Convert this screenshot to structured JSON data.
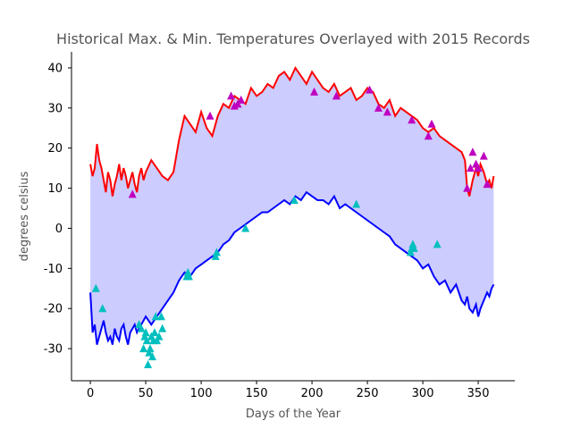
{
  "chart_data": {
    "type": "line",
    "title": "Historical Max. & Min. Temperatures Overlayed with 2015 Records",
    "xlabel": "Days of the Year",
    "ylabel": "degrees celsius",
    "xlim": [
      -17,
      383
    ],
    "ylim": [
      -38,
      44
    ],
    "xticks": [
      0,
      50,
      100,
      150,
      200,
      250,
      300,
      350
    ],
    "yticks": [
      -30,
      -20,
      -10,
      0,
      10,
      20,
      30,
      40
    ],
    "grid": false,
    "colors": {
      "max": "#ff0000",
      "min": "#0000ff",
      "fill": "#ccccff",
      "record_high": "#bf00bf",
      "record_low": "#00bfbf"
    },
    "series": [
      {
        "name": "",
        "kind": "max",
        "x": [
          0,
          2,
          4,
          6,
          8,
          10,
          12,
          14,
          16,
          18,
          20,
          22,
          24,
          26,
          28,
          30,
          32,
          34,
          36,
          38,
          40,
          42,
          44,
          46,
          48,
          50,
          55,
          60,
          65,
          70,
          75,
          80,
          85,
          90,
          95,
          100,
          105,
          110,
          115,
          120,
          125,
          130,
          135,
          140,
          145,
          150,
          155,
          160,
          165,
          170,
          175,
          180,
          185,
          190,
          195,
          200,
          205,
          210,
          215,
          220,
          225,
          230,
          235,
          240,
          245,
          250,
          255,
          260,
          265,
          270,
          275,
          280,
          285,
          290,
          295,
          300,
          305,
          310,
          315,
          320,
          325,
          330,
          335,
          338,
          340,
          342,
          345,
          348,
          350,
          352,
          355,
          358,
          360,
          362,
          364
        ],
        "y": [
          16,
          13,
          15,
          21,
          17,
          15,
          12,
          9,
          14,
          12,
          8,
          11,
          13,
          16,
          12,
          15,
          13,
          10,
          12,
          14,
          11,
          9,
          13,
          15,
          12,
          14,
          17,
          15,
          13,
          12,
          14,
          22,
          28,
          26,
          24,
          29,
          25,
          23,
          28,
          31,
          30,
          33,
          32,
          31,
          35,
          33,
          34,
          36,
          35,
          38,
          39,
          37,
          40,
          38,
          36,
          39,
          37,
          35,
          34,
          36,
          33,
          34,
          35,
          32,
          33,
          35,
          34,
          31,
          30,
          32,
          28,
          30,
          29,
          28,
          27,
          25,
          24,
          25,
          23,
          22,
          21,
          20,
          19,
          17,
          10,
          8,
          12,
          15,
          13,
          16,
          14,
          11,
          12,
          10,
          13
        ]
      },
      {
        "name": "",
        "kind": "min",
        "x": [
          0,
          2,
          4,
          6,
          8,
          10,
          12,
          14,
          16,
          18,
          20,
          22,
          24,
          26,
          28,
          30,
          32,
          34,
          36,
          38,
          40,
          42,
          44,
          46,
          48,
          50,
          55,
          60,
          65,
          70,
          75,
          80,
          85,
          90,
          95,
          100,
          105,
          110,
          115,
          120,
          125,
          130,
          135,
          140,
          145,
          150,
          155,
          160,
          165,
          170,
          175,
          180,
          185,
          190,
          195,
          200,
          205,
          210,
          215,
          220,
          225,
          230,
          235,
          240,
          245,
          250,
          255,
          260,
          265,
          270,
          275,
          280,
          285,
          290,
          295,
          300,
          305,
          310,
          315,
          320,
          325,
          330,
          335,
          338,
          340,
          342,
          345,
          348,
          350,
          352,
          355,
          358,
          360,
          362,
          364
        ],
        "y": [
          -16,
          -26,
          -24,
          -29,
          -27,
          -25,
          -23,
          -26,
          -28,
          -27,
          -29,
          -25,
          -27,
          -28,
          -25,
          -24,
          -27,
          -29,
          -26,
          -25,
          -24,
          -26,
          -25,
          -24,
          -23,
          -22,
          -24,
          -22,
          -20,
          -18,
          -16,
          -13,
          -11,
          -12,
          -10,
          -9,
          -8,
          -7,
          -6,
          -4,
          -3,
          -1,
          0,
          1,
          2,
          3,
          4,
          4,
          5,
          6,
          7,
          6,
          8,
          7,
          9,
          8,
          7,
          7,
          6,
          8,
          5,
          6,
          5,
          4,
          3,
          2,
          1,
          0,
          -1,
          -2,
          -4,
          -5,
          -6,
          -7,
          -8,
          -10,
          -9,
          -12,
          -14,
          -13,
          -16,
          -14,
          -18,
          -19,
          -17,
          -20,
          -21,
          -19,
          -22,
          -20,
          -18,
          -16,
          -17,
          -15,
          -14
        ]
      },
      {
        "name": "",
        "kind": "record_high",
        "x": [
          38,
          108,
          127,
          130,
          133,
          136,
          202,
          222,
          252,
          260,
          268,
          290,
          305,
          308,
          340,
          343,
          345,
          348,
          350,
          355,
          358
        ],
        "y": [
          8.5,
          28,
          33,
          30.5,
          31,
          32,
          34,
          33,
          34.5,
          30,
          29,
          27,
          23,
          26,
          10,
          15,
          19,
          16,
          15,
          18,
          11
        ]
      },
      {
        "name": "",
        "kind": "record_low",
        "x": [
          5,
          11,
          44,
          46,
          48,
          49,
          50,
          51,
          52,
          53,
          54,
          55,
          56,
          57,
          58,
          59,
          60,
          62,
          64,
          65,
          87,
          88,
          89,
          113,
          114,
          140,
          184,
          240,
          289,
          290,
          291,
          292,
          313
        ],
        "y": [
          -15,
          -20,
          -24,
          -25,
          -30,
          -27,
          -26,
          -28,
          -34,
          -31,
          -30,
          -27,
          -32,
          -28,
          -26,
          -22,
          -28,
          -27,
          -22,
          -25,
          -12,
          -11,
          -12,
          -7,
          -6,
          0,
          7,
          6,
          -6,
          -5,
          -4,
          -5,
          -4
        ]
      }
    ]
  }
}
